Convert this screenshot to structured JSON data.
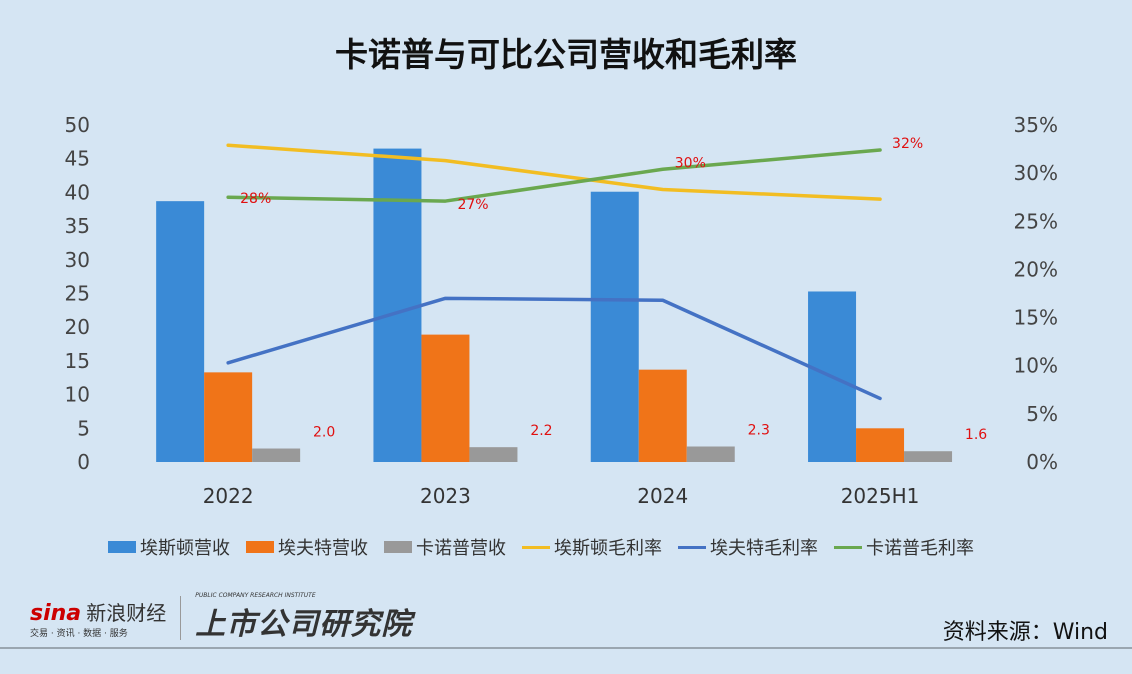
{
  "title": "卡诺普与可比公司营收和毛利率",
  "chart_data": {
    "type": "bar+line",
    "title": "卡诺普与可比公司营收和毛利率",
    "categories": [
      "2022",
      "2023",
      "2024",
      "2025H1"
    ],
    "y_left": {
      "range": [
        0,
        50
      ],
      "ticks": [
        "0",
        "5",
        "10",
        "15",
        "20",
        "25",
        "30",
        "35",
        "40",
        "45",
        "50"
      ]
    },
    "y_right": {
      "range": [
        0,
        35
      ],
      "ticks": [
        "0%",
        "5%",
        "10%",
        "15%",
        "20%",
        "25%",
        "30%",
        "35%"
      ]
    },
    "grid": false,
    "legend_position": "bottom",
    "bar_series": [
      {
        "name": "埃斯顿营收",
        "values": [
          38.7,
          46.5,
          40.1,
          25.3
        ],
        "color": "#3a8ad6"
      },
      {
        "name": "埃夫特营收",
        "values": [
          13.3,
          18.9,
          13.7,
          5.0
        ],
        "color": "#f07418"
      },
      {
        "name": "卡诺普营收",
        "values": [
          2.0,
          2.2,
          2.3,
          1.6
        ],
        "color": "#999999",
        "labels": [
          "2.0",
          "2.2",
          "2.3",
          "1.6"
        ]
      }
    ],
    "line_series": [
      {
        "name": "埃斯顿毛利率",
        "values": [
          32.9,
          31.3,
          28.3,
          27.3
        ],
        "color": "#f2bd22"
      },
      {
        "name": "埃夫特毛利率",
        "values": [
          10.3,
          17.0,
          16.8,
          6.6
        ],
        "color": "#4472c4"
      },
      {
        "name": "卡诺普毛利率",
        "values": [
          27.5,
          27.1,
          30.4,
          32.4
        ],
        "color": "#6aa84f",
        "labels": [
          "28%",
          "27%",
          "30%",
          "32%"
        ]
      }
    ]
  },
  "footer": {
    "sina": "sina",
    "sina_cn": "新浪财经",
    "sina_sub": "交易 · 资讯 · 数据 · 服务",
    "institute": "上市公司研究院",
    "institute_en": "PUBLIC COMPANY RESEARCH INSTITUTE",
    "source": "资料来源：Wind"
  }
}
